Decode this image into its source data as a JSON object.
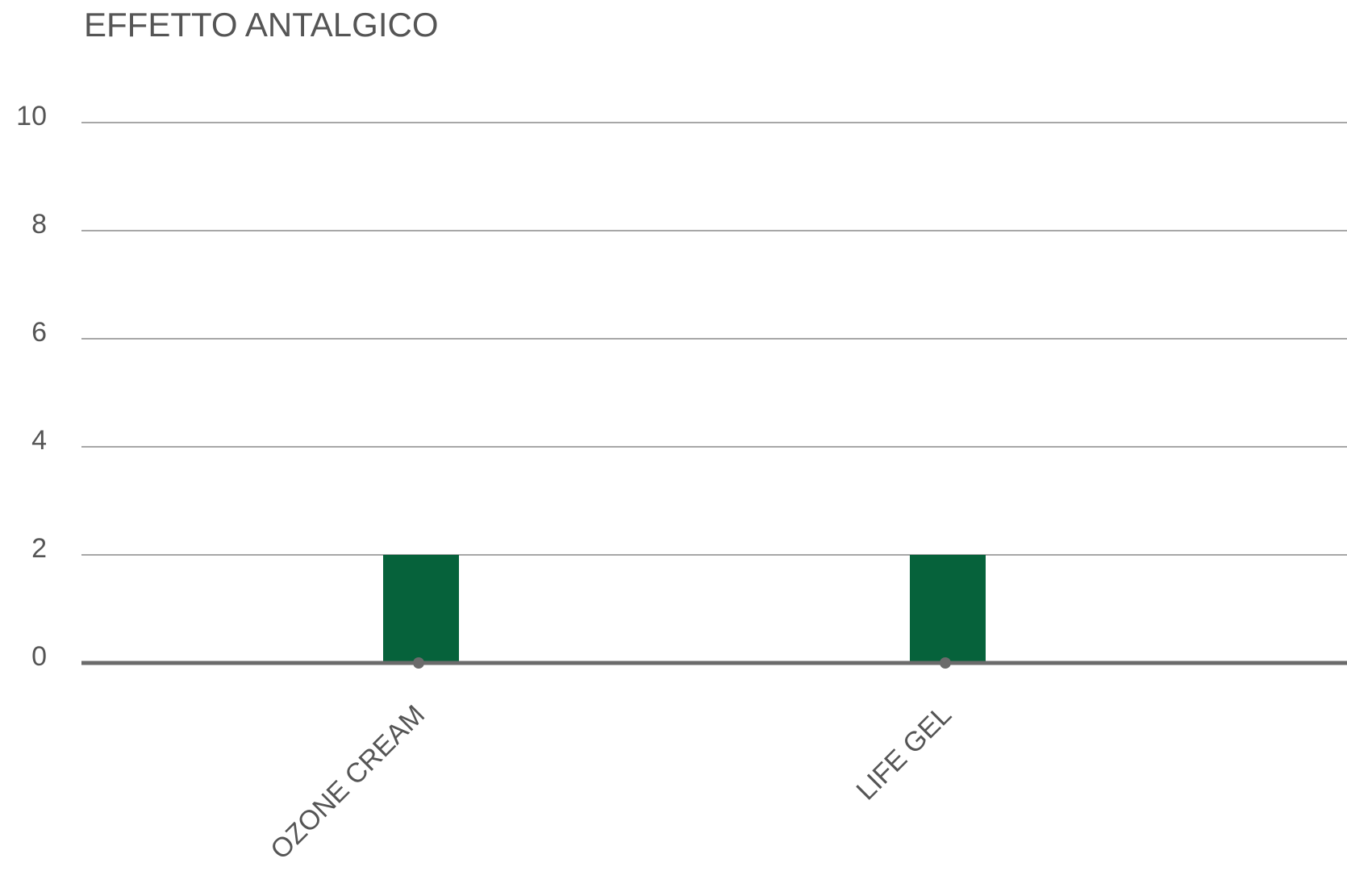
{
  "chart_data": {
    "type": "bar",
    "title": "EFFETTO ANTALGICO",
    "categories": [
      "OZONE CREAM",
      "LIFE GEL"
    ],
    "values": [
      2,
      2
    ],
    "color": "#06623b",
    "ylim": [
      0,
      10
    ],
    "yticks": [
      0,
      2,
      4,
      6,
      8,
      10
    ],
    "grid": true
  }
}
